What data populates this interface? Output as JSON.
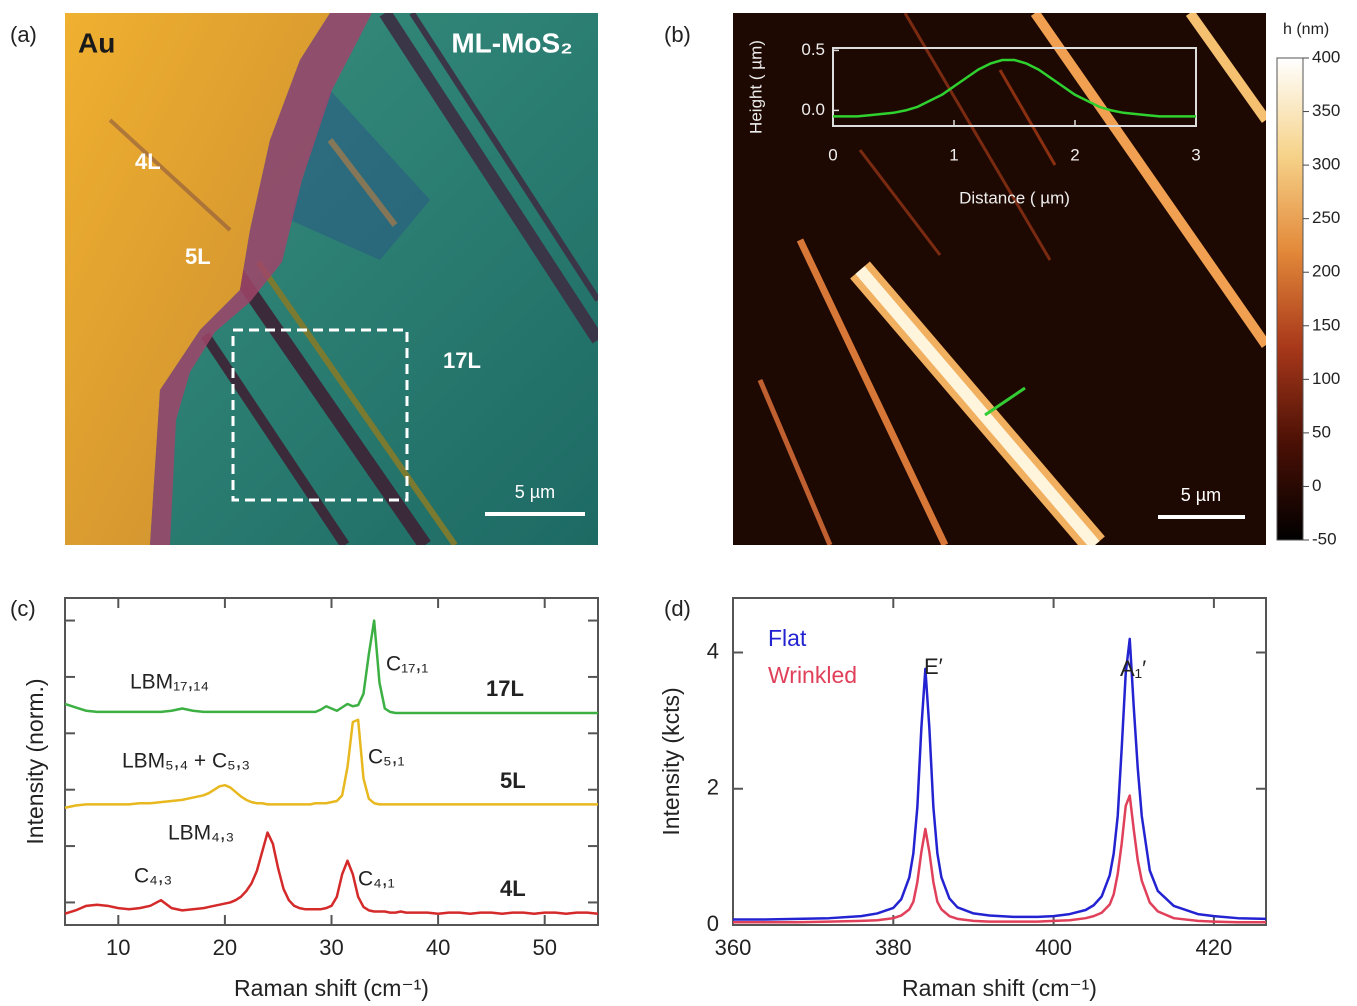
{
  "images": [
    {
      "panel_label": "(a)",
      "labels": [
        "Au",
        "ML-MoS₂",
        "4L",
        "5L",
        "17L"
      ],
      "scale_bar": "5 µm"
    },
    {
      "panel_label": "(b)",
      "scale_bar": "5 µm",
      "colorbar": {
        "label": "h (nm)",
        "lim": [
          -50,
          400
        ],
        "ticks": [
          -50,
          0,
          50,
          100,
          150,
          200,
          250,
          300,
          350,
          400
        ]
      }
    }
  ],
  "chart_data": [
    {
      "type": "line",
      "xlabel": "Distance ( µm)",
      "ylabel": "Height ( µm)",
      "x": [
        0,
        0.1,
        0.2,
        0.3,
        0.4,
        0.5,
        0.6,
        0.7,
        0.8,
        0.9,
        1.0,
        1.1,
        1.2,
        1.3,
        1.4,
        1.5,
        1.6,
        1.7,
        1.8,
        1.9,
        2.0,
        2.1,
        2.2,
        2.3,
        2.4,
        2.5,
        2.6,
        2.7,
        2.8,
        2.9,
        3.0
      ],
      "series": [
        {
          "color": "#2fd12f",
          "values": [
            -0.05,
            -0.05,
            -0.05,
            -0.04,
            -0.03,
            -0.02,
            0.0,
            0.03,
            0.08,
            0.13,
            0.2,
            0.27,
            0.34,
            0.39,
            0.42,
            0.42,
            0.39,
            0.34,
            0.27,
            0.2,
            0.13,
            0.08,
            0.03,
            0.0,
            -0.02,
            -0.03,
            -0.04,
            -0.05,
            -0.05,
            -0.05,
            -0.05
          ]
        }
      ],
      "xlim": [
        0,
        3
      ],
      "ylim": [
        -0.13,
        0.52
      ],
      "xticks": [
        0,
        1,
        2,
        3
      ],
      "yticks": [
        {
          "value": 0,
          "label": "0.0"
        },
        {
          "value": 0.5,
          "label": "0.5"
        }
      ]
    },
    {
      "type": "line",
      "panel_label": "(c)",
      "xlabel": "Raman shift (cm⁻¹)",
      "ylabel": "Intensity (norm.)",
      "x": [
        5,
        6,
        7,
        8,
        9,
        10,
        11,
        12,
        13,
        14,
        15,
        16,
        17,
        18,
        18.5,
        19,
        19.5,
        20,
        20.5,
        21,
        21.5,
        22,
        22.5,
        23,
        23.5,
        24,
        24.5,
        25,
        25.5,
        26,
        26.5,
        27,
        27.5,
        28,
        28.5,
        29,
        29.5,
        30,
        30.5,
        31,
        31.5,
        32,
        32.5,
        33,
        33.5,
        34,
        34.5,
        35,
        35.5,
        36,
        36.5,
        37,
        37.5,
        38,
        39,
        40,
        41,
        42,
        43,
        44,
        45,
        46,
        47,
        48,
        49,
        50,
        51,
        52,
        53,
        54,
        55
      ],
      "series": [
        {
          "name": "17L",
          "color": "#3cb043",
          "values": [
            1.76,
            1.73,
            1.7,
            1.69,
            1.69,
            1.69,
            1.69,
            1.69,
            1.69,
            1.69,
            1.7,
            1.72,
            1.7,
            1.69,
            1.69,
            1.69,
            1.69,
            1.69,
            1.69,
            1.69,
            1.69,
            1.69,
            1.69,
            1.69,
            1.69,
            1.69,
            1.69,
            1.69,
            1.69,
            1.69,
            1.69,
            1.69,
            1.69,
            1.69,
            1.69,
            1.71,
            1.74,
            1.72,
            1.7,
            1.73,
            1.76,
            1.74,
            1.75,
            1.85,
            2.2,
            2.5,
            1.95,
            1.72,
            1.69,
            1.68,
            1.68,
            1.68,
            1.68,
            1.68,
            1.68,
            1.68,
            1.68,
            1.68,
            1.68,
            1.68,
            1.68,
            1.68,
            1.68,
            1.68,
            1.68,
            1.68,
            1.68,
            1.68,
            1.68,
            1.68,
            1.68
          ]
        },
        {
          "name": "5L",
          "color": "#e8b820",
          "values": [
            0.84,
            0.86,
            0.87,
            0.87,
            0.87,
            0.87,
            0.87,
            0.88,
            0.88,
            0.89,
            0.9,
            0.91,
            0.93,
            0.95,
            0.97,
            1.0,
            1.03,
            1.04,
            1.02,
            0.98,
            0.94,
            0.91,
            0.89,
            0.88,
            0.88,
            0.87,
            0.87,
            0.87,
            0.87,
            0.87,
            0.87,
            0.87,
            0.87,
            0.87,
            0.88,
            0.88,
            0.88,
            0.89,
            0.9,
            0.95,
            1.2,
            1.6,
            1.62,
            1.1,
            0.92,
            0.88,
            0.87,
            0.87,
            0.87,
            0.87,
            0.87,
            0.87,
            0.87,
            0.87,
            0.87,
            0.87,
            0.87,
            0.87,
            0.87,
            0.87,
            0.87,
            0.87,
            0.87,
            0.87,
            0.87,
            0.87,
            0.87,
            0.87,
            0.87,
            0.87,
            0.87
          ]
        },
        {
          "name": "4L",
          "color": "#d42a2a",
          "values": [
            -0.1,
            -0.07,
            -0.03,
            -0.02,
            -0.03,
            -0.05,
            -0.06,
            -0.05,
            -0.03,
            0.02,
            -0.05,
            -0.07,
            -0.06,
            -0.05,
            -0.04,
            -0.03,
            -0.02,
            -0.01,
            0,
            0.02,
            0.05,
            0.1,
            0.17,
            0.28,
            0.45,
            0.62,
            0.52,
            0.3,
            0.12,
            0.02,
            -0.03,
            -0.05,
            -0.06,
            -0.06,
            -0.06,
            -0.06,
            -0.05,
            -0.03,
            0.05,
            0.25,
            0.37,
            0.25,
            0.05,
            -0.04,
            -0.07,
            -0.08,
            -0.08,
            -0.08,
            -0.09,
            -0.09,
            -0.08,
            -0.09,
            -0.09,
            -0.09,
            -0.09,
            -0.1,
            -0.09,
            -0.09,
            -0.1,
            -0.09,
            -0.09,
            -0.1,
            -0.09,
            -0.09,
            -0.1,
            -0.09,
            -0.09,
            -0.1,
            -0.09,
            -0.09,
            -0.1
          ]
        }
      ],
      "annotations": [
        "LBM₁₇,₁₄",
        "C₁₇,₁",
        "LBM₅,₄ + C₅,₃",
        "C₅,₁",
        "LBM₄,₃",
        "C₄,₃",
        "C₄,₁"
      ],
      "xlim": [
        5,
        55
      ],
      "ylim": [
        -0.2,
        2.7
      ],
      "xticks": [
        10,
        20,
        30,
        40,
        50
      ],
      "yticks": [
        0,
        0.5,
        1,
        1.5,
        2,
        2.5
      ]
    },
    {
      "type": "line",
      "panel_label": "(d)",
      "xlabel": "Raman shift (cm⁻¹)",
      "ylabel": "Intensity (kcts)",
      "x": [
        360,
        364,
        368,
        372,
        376,
        378,
        380,
        381,
        382,
        382.5,
        383,
        383.5,
        384,
        384.5,
        385,
        385.5,
        386,
        387,
        388,
        390,
        392,
        395,
        398,
        400,
        402,
        404,
        405,
        406,
        407,
        407.5,
        408,
        408.5,
        409,
        409.5,
        410,
        410.5,
        411,
        412,
        413,
        415,
        418,
        420,
        423,
        426.5
      ],
      "series": [
        {
          "name": "Flat",
          "color": "#2323d2",
          "values": [
            0.08,
            0.08,
            0.09,
            0.1,
            0.13,
            0.17,
            0.25,
            0.38,
            0.7,
            1.05,
            1.73,
            2.89,
            3.76,
            2.89,
            1.73,
            1.05,
            0.7,
            0.39,
            0.26,
            0.17,
            0.14,
            0.12,
            0.12,
            0.13,
            0.16,
            0.22,
            0.29,
            0.42,
            0.73,
            1.05,
            1.6,
            2.6,
            3.7,
            4.2,
            3.2,
            2.3,
            1.6,
            0.8,
            0.5,
            0.28,
            0.16,
            0.13,
            0.1,
            0.09
          ]
        },
        {
          "name": "Wrinkled",
          "color": "#e0405a",
          "values": [
            0.04,
            0.04,
            0.04,
            0.05,
            0.06,
            0.07,
            0.1,
            0.14,
            0.23,
            0.34,
            0.63,
            1.07,
            1.41,
            1.07,
            0.63,
            0.34,
            0.23,
            0.13,
            0.09,
            0.06,
            0.05,
            0.05,
            0.05,
            0.06,
            0.07,
            0.1,
            0.13,
            0.18,
            0.3,
            0.45,
            0.75,
            1.2,
            1.75,
            1.9,
            1.4,
            0.95,
            0.65,
            0.33,
            0.2,
            0.1,
            0.06,
            0.05,
            0.04,
            0.04
          ]
        }
      ],
      "annotations": [
        "E′",
        "A₁′"
      ],
      "xlim": [
        360,
        426.5
      ],
      "ylim": [
        0,
        4.8
      ],
      "xticks": [
        360,
        380,
        400,
        420
      ],
      "yticks": [
        0,
        2,
        4
      ]
    }
  ]
}
